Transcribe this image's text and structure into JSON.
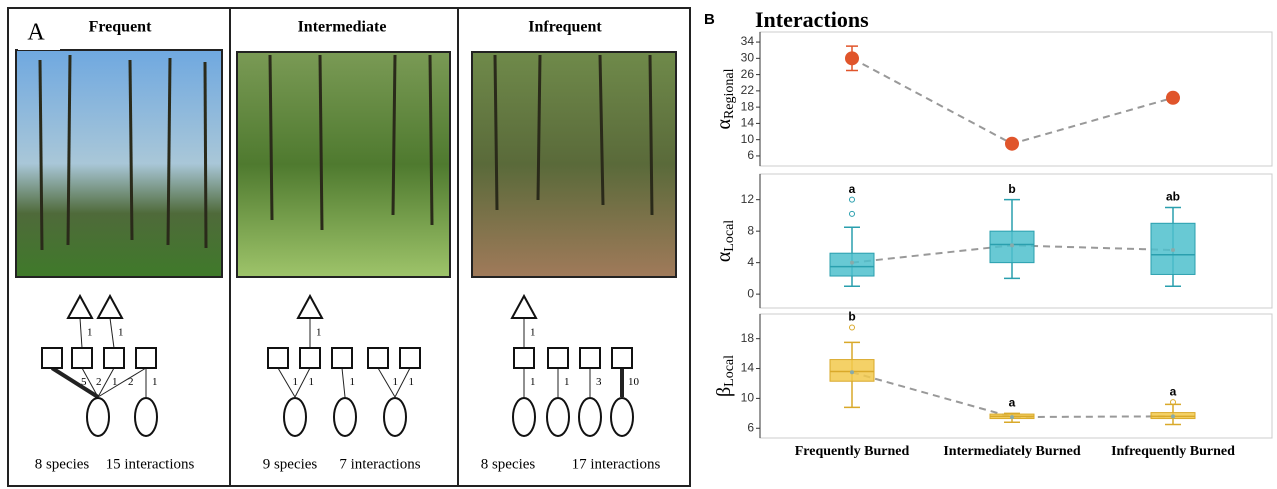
{
  "panel_a": {
    "label": "A",
    "columns": [
      {
        "title": "Frequent",
        "edge_labels": [
          1,
          1,
          5,
          2,
          1,
          2,
          1
        ],
        "species": "8 species",
        "interactions": "15 interactions"
      },
      {
        "title": "Intermediate",
        "edge_labels": [
          1,
          1,
          1,
          1,
          1,
          1
        ],
        "species": "9 species",
        "interactions": "7 interactions"
      },
      {
        "title": "Infrequent",
        "edge_labels": [
          1,
          1,
          1,
          3,
          10
        ],
        "species": "8 species",
        "interactions": "17 interactions"
      }
    ]
  },
  "panel_b": {
    "label": "B",
    "title": "Interactions"
  },
  "chart_data": [
    {
      "type": "errorpoint",
      "y_label": "α",
      "y_label_sub": "Regional",
      "color": "#e0552b",
      "values": [
        30,
        9,
        20.3
      ],
      "errors": [
        3,
        0.5,
        0.8
      ],
      "ylim": [
        5,
        35
      ],
      "yticks": [
        6,
        10,
        14,
        18,
        22,
        26,
        30,
        34
      ]
    },
    {
      "type": "box",
      "y_label": "α",
      "y_label_sub": "Local",
      "color": "#4dbfcc",
      "edge": "#2a9fae",
      "whisker_low": [
        1,
        2,
        1
      ],
      "q1": [
        2.3,
        4,
        2.5
      ],
      "median": [
        3.5,
        6.3,
        5
      ],
      "q3": [
        5.2,
        8,
        9
      ],
      "whisker_high": [
        8.5,
        12,
        11
      ],
      "mean": [
        4,
        6.2,
        5.6
      ],
      "outliers": [
        [
          10.2,
          12
        ],
        [],
        []
      ],
      "letters": [
        "a",
        "b",
        "ab"
      ],
      "ylim": [
        -1,
        14.5
      ],
      "yticks": [
        0,
        4,
        8,
        12
      ]
    },
    {
      "type": "box",
      "y_label": "β",
      "y_label_sub": "Local",
      "color": "#f2c94c",
      "edge": "#d9a92a",
      "whisker_low": [
        8.8,
        6.8,
        6.5
      ],
      "q1": [
        12.3,
        7.3,
        7.3
      ],
      "median": [
        13.6,
        7.6,
        7.6
      ],
      "q3": [
        15.2,
        7.9,
        8.1
      ],
      "whisker_high": [
        17.5,
        8,
        9.2
      ],
      "mean": [
        13.5,
        7.5,
        7.6
      ],
      "outliers": [
        [
          19.5
        ],
        [],
        [
          9.5
        ]
      ],
      "letters": [
        "b",
        "a",
        "a"
      ],
      "categories": [
        "Frequently Burned",
        "Intermediately Burned",
        "Infrequently Burned"
      ],
      "ylim": [
        5.5,
        20.5
      ],
      "yticks": [
        6,
        10,
        14,
        18
      ]
    }
  ]
}
